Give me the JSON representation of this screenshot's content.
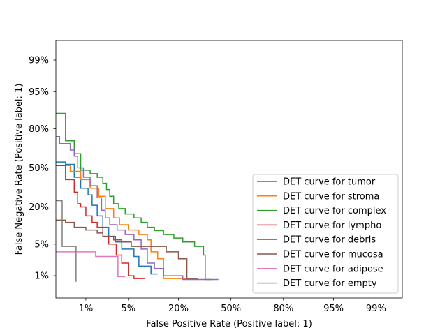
{
  "chart_data": {
    "type": "line",
    "title": "",
    "xlabel": "False Positive Rate (Positive label: 1)",
    "ylabel": "False Negative Rate (Positive label: 1)",
    "x_scale": "probit",
    "y_scale": "probit",
    "xlim": [
      0.0025,
      0.997
    ],
    "ylim": [
      0.0025,
      0.997
    ],
    "x_ticks": [
      {
        "value": 0.01,
        "label": "1%"
      },
      {
        "value": 0.05,
        "label": "5%"
      },
      {
        "value": 0.2,
        "label": "20%"
      },
      {
        "value": 0.5,
        "label": "50%"
      },
      {
        "value": 0.8,
        "label": "80%"
      },
      {
        "value": 0.95,
        "label": "95%"
      },
      {
        "value": 0.99,
        "label": "99%"
      }
    ],
    "y_ticks": [
      {
        "value": 0.01,
        "label": "1%"
      },
      {
        "value": 0.05,
        "label": "5%"
      },
      {
        "value": 0.2,
        "label": "20%"
      },
      {
        "value": 0.5,
        "label": "50%"
      },
      {
        "value": 0.8,
        "label": "80%"
      },
      {
        "value": 0.95,
        "label": "95%"
      },
      {
        "value": 0.99,
        "label": "99%"
      }
    ],
    "grid": false,
    "legend_position": "lower right",
    "series": [
      {
        "name": "DET curve for tumor",
        "color": "#1f77b4",
        "points": [
          [
            0.0025,
            0.55
          ],
          [
            0.004,
            0.55
          ],
          [
            0.004,
            0.53
          ],
          [
            0.006,
            0.53
          ],
          [
            0.006,
            0.42
          ],
          [
            0.008,
            0.42
          ],
          [
            0.008,
            0.33
          ],
          [
            0.011,
            0.33
          ],
          [
            0.011,
            0.28
          ],
          [
            0.013,
            0.28
          ],
          [
            0.013,
            0.21
          ],
          [
            0.016,
            0.21
          ],
          [
            0.016,
            0.15
          ],
          [
            0.02,
            0.15
          ],
          [
            0.02,
            0.1
          ],
          [
            0.025,
            0.1
          ],
          [
            0.025,
            0.07
          ],
          [
            0.032,
            0.07
          ],
          [
            0.032,
            0.055
          ],
          [
            0.04,
            0.055
          ],
          [
            0.04,
            0.04
          ],
          [
            0.06,
            0.04
          ],
          [
            0.06,
            0.028
          ],
          [
            0.07,
            0.028
          ],
          [
            0.07,
            0.017
          ],
          [
            0.1,
            0.017
          ],
          [
            0.1,
            0.011
          ],
          [
            0.12,
            0.011
          ]
        ]
      },
      {
        "name": "DET curve for stroma",
        "color": "#ff7f0e",
        "points": [
          [
            0.0025,
            0.52
          ],
          [
            0.005,
            0.52
          ],
          [
            0.005,
            0.47
          ],
          [
            0.008,
            0.47
          ],
          [
            0.008,
            0.4
          ],
          [
            0.012,
            0.4
          ],
          [
            0.012,
            0.33
          ],
          [
            0.017,
            0.33
          ],
          [
            0.017,
            0.27
          ],
          [
            0.022,
            0.27
          ],
          [
            0.022,
            0.19
          ],
          [
            0.03,
            0.19
          ],
          [
            0.03,
            0.14
          ],
          [
            0.037,
            0.14
          ],
          [
            0.037,
            0.11
          ],
          [
            0.05,
            0.11
          ],
          [
            0.05,
            0.09
          ],
          [
            0.07,
            0.09
          ],
          [
            0.07,
            0.075
          ],
          [
            0.09,
            0.075
          ],
          [
            0.09,
            0.06
          ],
          [
            0.1,
            0.06
          ],
          [
            0.1,
            0.035
          ],
          [
            0.12,
            0.035
          ],
          [
            0.12,
            0.025
          ],
          [
            0.14,
            0.025
          ],
          [
            0.14,
            0.0085
          ],
          [
            0.24,
            0.0085
          ]
        ]
      },
      {
        "name": "DET curve for complex",
        "color": "#2ca02c",
        "points": [
          [
            0.0025,
            0.88
          ],
          [
            0.004,
            0.88
          ],
          [
            0.004,
            0.72
          ],
          [
            0.006,
            0.72
          ],
          [
            0.006,
            0.62
          ],
          [
            0.008,
            0.62
          ],
          [
            0.008,
            0.48
          ],
          [
            0.012,
            0.48
          ],
          [
            0.012,
            0.45
          ],
          [
            0.016,
            0.45
          ],
          [
            0.016,
            0.42
          ],
          [
            0.02,
            0.42
          ],
          [
            0.02,
            0.37
          ],
          [
            0.023,
            0.37
          ],
          [
            0.023,
            0.32
          ],
          [
            0.026,
            0.32
          ],
          [
            0.026,
            0.27
          ],
          [
            0.03,
            0.27
          ],
          [
            0.03,
            0.22
          ],
          [
            0.036,
            0.22
          ],
          [
            0.036,
            0.19
          ],
          [
            0.045,
            0.19
          ],
          [
            0.045,
            0.16
          ],
          [
            0.06,
            0.16
          ],
          [
            0.06,
            0.14
          ],
          [
            0.075,
            0.14
          ],
          [
            0.075,
            0.12
          ],
          [
            0.09,
            0.12
          ],
          [
            0.09,
            0.1
          ],
          [
            0.11,
            0.1
          ],
          [
            0.11,
            0.088
          ],
          [
            0.14,
            0.088
          ],
          [
            0.14,
            0.075
          ],
          [
            0.18,
            0.075
          ],
          [
            0.18,
            0.065
          ],
          [
            0.22,
            0.065
          ],
          [
            0.22,
            0.055
          ],
          [
            0.28,
            0.055
          ],
          [
            0.28,
            0.045
          ],
          [
            0.33,
            0.045
          ],
          [
            0.33,
            0.03
          ],
          [
            0.34,
            0.03
          ],
          [
            0.34,
            0.008
          ],
          [
            0.38,
            0.008
          ]
        ]
      },
      {
        "name": "DET curve for lympho",
        "color": "#d62728",
        "points": [
          [
            0.0025,
            0.52
          ],
          [
            0.004,
            0.52
          ],
          [
            0.004,
            0.4
          ],
          [
            0.006,
            0.4
          ],
          [
            0.006,
            0.3
          ],
          [
            0.007,
            0.3
          ],
          [
            0.007,
            0.22
          ],
          [
            0.008,
            0.22
          ],
          [
            0.008,
            0.2
          ],
          [
            0.01,
            0.2
          ],
          [
            0.01,
            0.15
          ],
          [
            0.013,
            0.15
          ],
          [
            0.013,
            0.12
          ],
          [
            0.016,
            0.12
          ],
          [
            0.016,
            0.1
          ],
          [
            0.02,
            0.1
          ],
          [
            0.02,
            0.07
          ],
          [
            0.025,
            0.07
          ],
          [
            0.025,
            0.05
          ],
          [
            0.033,
            0.05
          ],
          [
            0.033,
            0.03
          ],
          [
            0.04,
            0.03
          ],
          [
            0.04,
            0.02
          ],
          [
            0.05,
            0.02
          ],
          [
            0.05,
            0.01
          ],
          [
            0.06,
            0.01
          ],
          [
            0.06,
            0.0085
          ],
          [
            0.085,
            0.0085
          ]
        ]
      },
      {
        "name": "DET curve for debris",
        "color": "#9467bd",
        "points": [
          [
            0.0025,
            0.75
          ],
          [
            0.003,
            0.75
          ],
          [
            0.003,
            0.7
          ],
          [
            0.005,
            0.7
          ],
          [
            0.005,
            0.65
          ],
          [
            0.006,
            0.65
          ],
          [
            0.006,
            0.6
          ],
          [
            0.007,
            0.6
          ],
          [
            0.007,
            0.5
          ],
          [
            0.009,
            0.5
          ],
          [
            0.009,
            0.42
          ],
          [
            0.012,
            0.42
          ],
          [
            0.012,
            0.35
          ],
          [
            0.016,
            0.35
          ],
          [
            0.016,
            0.26
          ],
          [
            0.019,
            0.26
          ],
          [
            0.019,
            0.18
          ],
          [
            0.022,
            0.18
          ],
          [
            0.022,
            0.14
          ],
          [
            0.026,
            0.14
          ],
          [
            0.026,
            0.11
          ],
          [
            0.034,
            0.11
          ],
          [
            0.034,
            0.09
          ],
          [
            0.045,
            0.09
          ],
          [
            0.045,
            0.075
          ],
          [
            0.06,
            0.075
          ],
          [
            0.06,
            0.06
          ],
          [
            0.075,
            0.06
          ],
          [
            0.075,
            0.04
          ],
          [
            0.09,
            0.04
          ],
          [
            0.09,
            0.02
          ],
          [
            0.11,
            0.02
          ],
          [
            0.11,
            0.015
          ],
          [
            0.14,
            0.015
          ],
          [
            0.14,
            0.01
          ],
          [
            0.22,
            0.01
          ],
          [
            0.22,
            0.008
          ],
          [
            0.42,
            0.008
          ]
        ]
      },
      {
        "name": "DET curve for mucosa",
        "color": "#8c564b",
        "points": [
          [
            0.0025,
            0.13
          ],
          [
            0.004,
            0.13
          ],
          [
            0.004,
            0.12
          ],
          [
            0.006,
            0.12
          ],
          [
            0.006,
            0.1
          ],
          [
            0.01,
            0.1
          ],
          [
            0.01,
            0.09
          ],
          [
            0.016,
            0.09
          ],
          [
            0.016,
            0.08
          ],
          [
            0.02,
            0.08
          ],
          [
            0.02,
            0.07
          ],
          [
            0.03,
            0.07
          ],
          [
            0.03,
            0.06
          ],
          [
            0.04,
            0.06
          ],
          [
            0.04,
            0.055
          ],
          [
            0.055,
            0.055
          ],
          [
            0.055,
            0.045
          ],
          [
            0.15,
            0.045
          ],
          [
            0.15,
            0.035
          ],
          [
            0.2,
            0.035
          ],
          [
            0.2,
            0.025
          ],
          [
            0.24,
            0.025
          ],
          [
            0.24,
            0.0085
          ],
          [
            0.3,
            0.0085
          ]
        ]
      },
      {
        "name": "DET curve for adipose",
        "color": "#e377c2",
        "points": [
          [
            0.0025,
            0.035
          ],
          [
            0.015,
            0.035
          ],
          [
            0.015,
            0.028
          ],
          [
            0.035,
            0.028
          ],
          [
            0.035,
            0.0095
          ],
          [
            0.045,
            0.0095
          ]
        ]
      },
      {
        "name": "DET curve for empty",
        "color": "#7f7f7f",
        "points": [
          [
            0.0025,
            0.24
          ],
          [
            0.0034,
            0.24
          ],
          [
            0.0034,
            0.045
          ],
          [
            0.0065,
            0.045
          ],
          [
            0.0065,
            0.007
          ]
        ]
      }
    ]
  }
}
